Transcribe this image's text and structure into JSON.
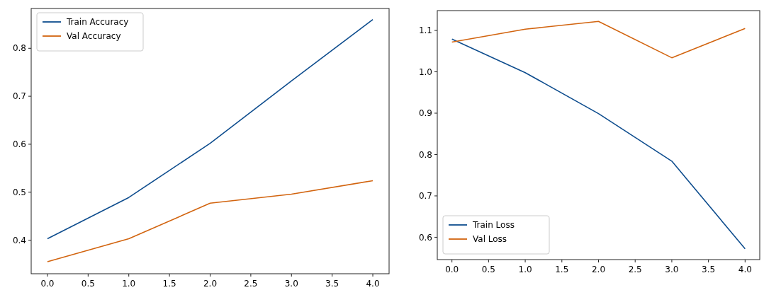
{
  "chart_data": [
    {
      "type": "line",
      "x": [
        0,
        1,
        2,
        3,
        4
      ],
      "series": [
        {
          "name": "Train Accuracy",
          "color": "#0e4d8e",
          "values": [
            0.403,
            0.489,
            0.602,
            0.732,
            0.86
          ]
        },
        {
          "name": "Val Accuracy",
          "color": "#d2640f",
          "values": [
            0.355,
            0.403,
            0.477,
            0.496,
            0.524
          ]
        }
      ],
      "xlim": [
        -0.2,
        4.2
      ],
      "xticks": [
        {
          "value": 0,
          "label": "0.0"
        },
        0.5,
        {
          "value": 1,
          "label": "1.0"
        },
        1.5,
        {
          "value": 2,
          "label": "2.0"
        },
        2.5,
        {
          "value": 3,
          "label": "3.0"
        },
        3.5,
        {
          "value": 4,
          "label": "4.0"
        }
      ],
      "ylim": [
        0.33,
        0.883
      ],
      "yticks": [
        0.4,
        0.5,
        0.6,
        0.7,
        0.8
      ],
      "legend": "top left",
      "grid": false
    },
    {
      "type": "line",
      "x": [
        0,
        1,
        2,
        3,
        4
      ],
      "series": [
        {
          "name": "Train Loss",
          "color": "#0e4d8e",
          "values": [
            1.079,
            0.998,
            0.899,
            0.784,
            0.572
          ]
        },
        {
          "name": "Val Loss",
          "color": "#d2640f",
          "values": [
            1.072,
            1.103,
            1.122,
            1.034,
            1.105
          ]
        }
      ],
      "xlim": [
        -0.2,
        4.2
      ],
      "xticks": [
        {
          "value": 0,
          "label": "0.0"
        },
        0.5,
        {
          "value": 1,
          "label": "1.0"
        },
        1.5,
        {
          "value": 2,
          "label": "2.0"
        },
        2.5,
        {
          "value": 3,
          "label": "3.0"
        },
        3.5,
        {
          "value": 4,
          "label": "4.0"
        }
      ],
      "ylim": [
        0.546,
        1.148
      ],
      "yticks": [
        0.6,
        0.7,
        0.8,
        0.9,
        {
          "value": 1,
          "label": "1.0"
        },
        1.1
      ],
      "legend": "bottom left",
      "grid": false
    }
  ]
}
